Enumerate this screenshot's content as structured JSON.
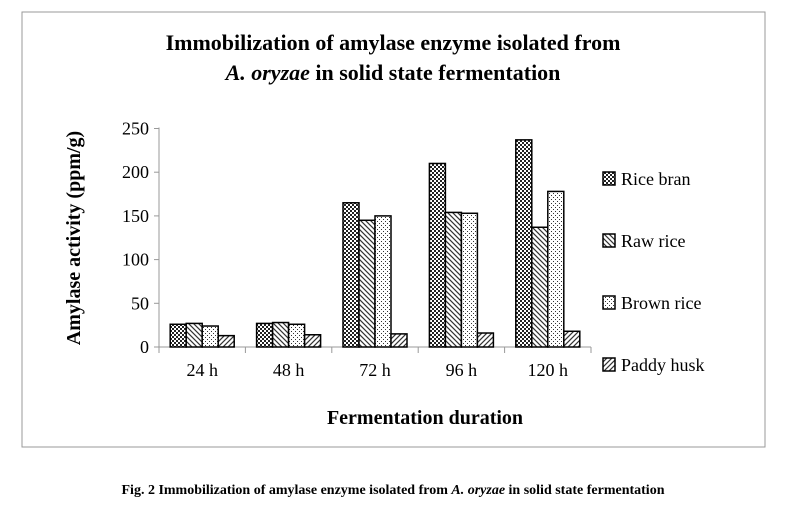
{
  "chart_data": {
    "type": "bar",
    "title": "Immobilization of amylase enzyme isolated from",
    "title_line2_italic": "A. oryzae",
    "title_line2_rest": " in solid state fermentation",
    "xlabel": "Fermentation duration",
    "ylabel": "Amylase activity (ppm/g)",
    "ylim": [
      0,
      250
    ],
    "yticks": [
      0,
      50,
      100,
      150,
      200,
      250
    ],
    "categories": [
      "24 h",
      "48 h",
      "72 h",
      "96 h",
      "120 h"
    ],
    "series": [
      {
        "name": "Rice bran",
        "values": [
          26,
          27,
          165,
          210,
          237
        ],
        "pattern": "checker"
      },
      {
        "name": "Raw rice",
        "values": [
          27,
          28,
          145,
          154,
          137
        ],
        "pattern": "backslash"
      },
      {
        "name": "Brown rice",
        "values": [
          24,
          26,
          150,
          153,
          178
        ],
        "pattern": "dots"
      },
      {
        "name": "Paddy husk",
        "values": [
          13,
          14,
          15,
          16,
          18
        ],
        "pattern": "slash"
      }
    ],
    "legend": "right",
    "grid": false
  },
  "caption": {
    "prefix": "Fig. 2 Immobilization of amylase enzyme isolated from ",
    "italic": "A. oryzae",
    "suffix": " in solid state fermentation"
  }
}
